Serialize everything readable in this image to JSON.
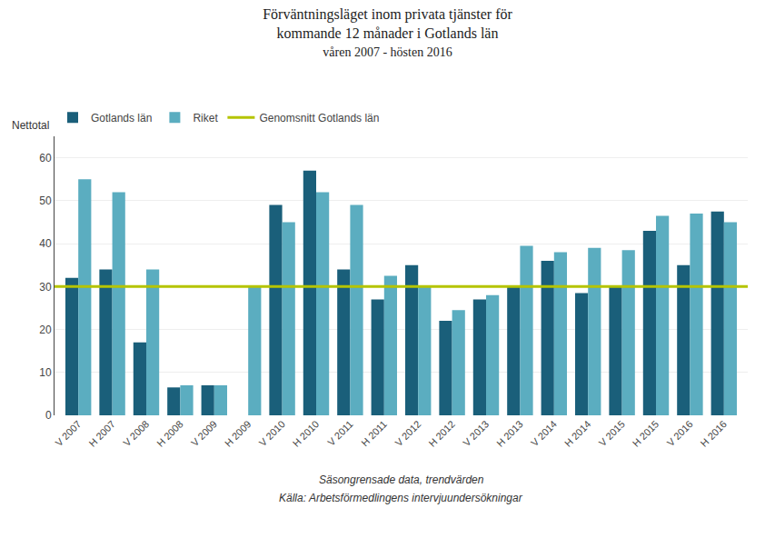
{
  "chart_data": {
    "type": "bar",
    "title": "Förväntningsläget inom privata tjänster för\nkommande 12 månader i Gotlands län",
    "subtitle": "våren 2007 - hösten 2016",
    "y_label": "Nettotal",
    "annotations": [
      "Säsongrensade data, trendvärden",
      "Källa: Arbetsförmedlingens intervjuundersökningar"
    ],
    "categories": [
      "V 2007",
      "H 2007",
      "V 2008",
      "H 2008",
      "V 2009",
      "H 2009",
      "V 2010",
      "H 2010",
      "V 2011",
      "H 2011",
      "V 2012",
      "H 2012",
      "V 2013",
      "H 2013",
      "V 2014",
      "H 2014",
      "V 2015",
      "H 2015",
      "V 2016",
      "H 2016"
    ],
    "series": [
      {
        "name": "Gotlands län",
        "color": "#1a5f7a",
        "type": "bar",
        "values": [
          32,
          34,
          17,
          6.5,
          7,
          null,
          49,
          57,
          34,
          27,
          35,
          22,
          27,
          30,
          36,
          28.5,
          30,
          43,
          35,
          47.5
        ]
      },
      {
        "name": "Riket",
        "color": "#5badc0",
        "type": "bar",
        "values": [
          55,
          52,
          34,
          7,
          7,
          30,
          45,
          52,
          49,
          32.5,
          30,
          24.5,
          28,
          39.5,
          38,
          39,
          38.5,
          46.5,
          47,
          45
        ]
      }
    ],
    "reference_line": {
      "name": "Genomsnitt Gotlands län",
      "color": "#b5c400",
      "value": 30
    },
    "ylim": [
      0,
      65
    ],
    "yticks": [
      0,
      10,
      20,
      30,
      40,
      50,
      60
    ],
    "grid": true,
    "legend": "top left"
  }
}
